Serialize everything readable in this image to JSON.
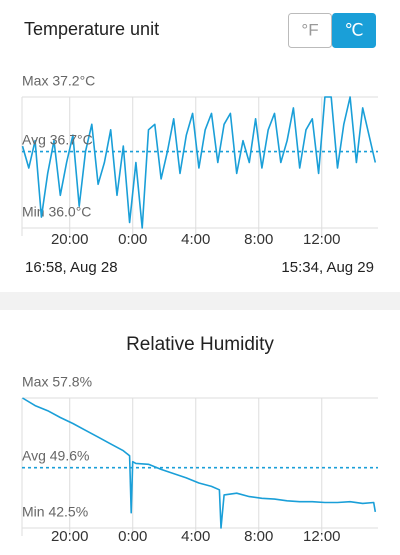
{
  "header": {
    "title": "Temperature unit",
    "units": [
      "°F",
      "℃"
    ],
    "selected": 1
  },
  "date_range": [
    "16:58,  Aug 28",
    "15:34,  Aug 29"
  ],
  "chart_data": [
    {
      "type": "line",
      "color": "#1a9fd8",
      "x": [
        17.0,
        17.4,
        17.8,
        18.2,
        18.6,
        19.0,
        19.4,
        19.8,
        20.2,
        20.6,
        21.0,
        21.4,
        21.8,
        22.2,
        22.6,
        23.0,
        23.4,
        23.8,
        24.2,
        24.6,
        25.0,
        25.4,
        25.8,
        26.2,
        26.6,
        27.0,
        27.4,
        27.8,
        28.2,
        28.6,
        29.0,
        29.4,
        29.8,
        30.2,
        30.6,
        31.0,
        31.4,
        31.8,
        32.2,
        32.6,
        33.0,
        33.4,
        33.8,
        34.2,
        34.6,
        35.0,
        35.4,
        35.8,
        36.2,
        36.6,
        37.0,
        37.4,
        37.8,
        38.2,
        38.6,
        39.0,
        39.4
      ],
      "values": [
        36.75,
        36.55,
        36.8,
        36.1,
        36.5,
        36.8,
        36.3,
        36.6,
        36.85,
        36.2,
        36.7,
        36.95,
        36.4,
        36.6,
        36.9,
        36.3,
        36.75,
        36.05,
        36.6,
        36.0,
        36.9,
        36.95,
        36.45,
        36.7,
        37.0,
        36.5,
        36.85,
        37.05,
        36.55,
        36.9,
        37.05,
        36.6,
        36.95,
        37.05,
        36.5,
        36.8,
        36.6,
        37.0,
        36.55,
        36.9,
        37.05,
        36.6,
        36.8,
        37.1,
        36.55,
        36.9,
        37.0,
        36.5,
        37.2,
        37.2,
        36.55,
        36.95,
        37.2,
        36.6,
        37.1,
        36.85,
        36.6
      ],
      "xlim": [
        16.97,
        39.57
      ],
      "xticks": [
        {
          "value": 20,
          "label": "20:00"
        },
        {
          "value": 24,
          "label": "0:00"
        },
        {
          "value": 28,
          "label": "4:00"
        },
        {
          "value": 32,
          "label": "8:00"
        },
        {
          "value": 36,
          "label": "12:00"
        }
      ],
      "ylim": [
        36.0,
        37.2
      ],
      "yticks": [
        {
          "value": 37.2,
          "label": "Max 37.2°C"
        },
        {
          "value": 36.0,
          "label": "Min 36.0°C"
        }
      ],
      "avg": {
        "value": 36.7,
        "label": "Avg 36.7°C"
      },
      "grid": true
    },
    {
      "type": "line",
      "title": "Relative Humidity",
      "color": "#1a9fd8",
      "x": [
        17.0,
        17.8,
        18.6,
        19.4,
        20.2,
        21.0,
        21.8,
        22.6,
        23.4,
        23.8,
        23.9,
        24.0,
        24.2,
        25.0,
        25.8,
        26.6,
        27.4,
        28.2,
        29.0,
        29.5,
        29.6,
        29.8,
        30.6,
        31.4,
        32.2,
        33.0,
        33.8,
        34.6,
        35.4,
        36.2,
        37.0,
        37.8,
        38.6,
        39.3,
        39.4
      ],
      "values": [
        57.8,
        56.9,
        56.3,
        55.5,
        54.8,
        54.0,
        53.2,
        52.4,
        51.6,
        51.0,
        44.3,
        50.3,
        50.1,
        50.0,
        49.4,
        48.9,
        48.4,
        47.8,
        47.4,
        47.0,
        42.5,
        46.4,
        46.6,
        46.2,
        46.0,
        45.9,
        45.7,
        45.6,
        45.6,
        45.5,
        45.5,
        45.6,
        45.4,
        45.5,
        44.4
      ],
      "xlim": [
        16.97,
        39.57
      ],
      "xticks": [
        {
          "value": 20,
          "label": "20:00"
        },
        {
          "value": 24,
          "label": "0:00"
        },
        {
          "value": 28,
          "label": "4:00"
        },
        {
          "value": 32,
          "label": "8:00"
        },
        {
          "value": 36,
          "label": "12:00"
        }
      ],
      "ylim": [
        42.5,
        57.8
      ],
      "yticks": [
        {
          "value": 57.8,
          "label": "Max 57.8%"
        },
        {
          "value": 42.5,
          "label": "Min 42.5%"
        }
      ],
      "avg": {
        "value": 49.6,
        "label": "Avg 49.6%"
      },
      "grid": true
    }
  ]
}
